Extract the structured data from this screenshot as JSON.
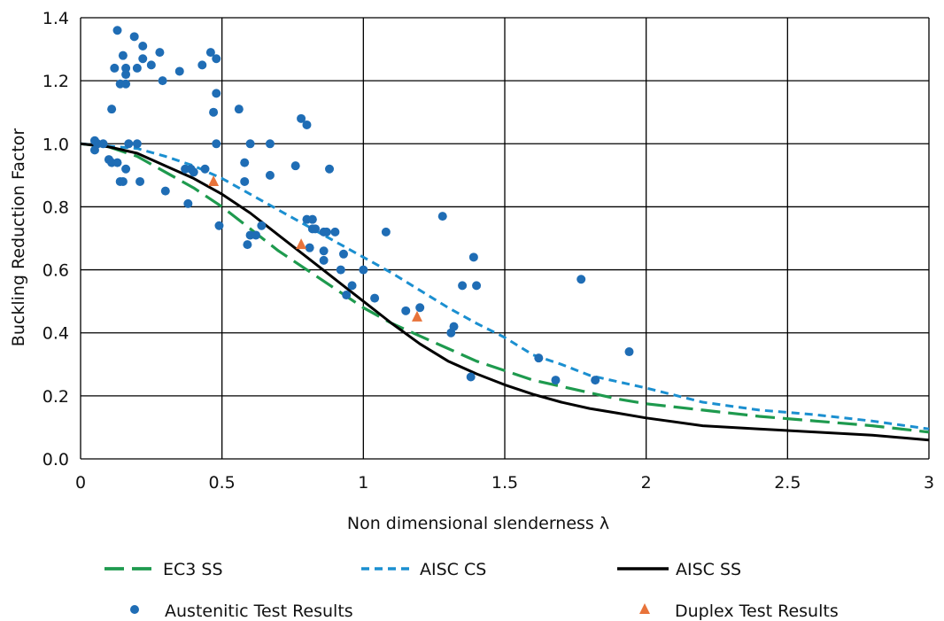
{
  "chart_data": {
    "type": "scatter",
    "xlabel": "Non dimensional slenderness λ",
    "ylabel": "Buckling Reduction Factor",
    "xlim": [
      0,
      3
    ],
    "ylim": [
      0,
      1.4
    ],
    "x_ticks": [
      "0",
      "0.5",
      "1",
      "1.5",
      "2",
      "2.5",
      "3"
    ],
    "y_ticks": [
      "0.0",
      "0.2",
      "0.4",
      "0.6",
      "0.8",
      "1.0",
      "1.2",
      "1.4"
    ],
    "grid": true,
    "legend_position": "bottom",
    "series": [
      {
        "name": "EC3 SS",
        "kind": "line",
        "color": "#1e9a4e",
        "dash": "long-dash",
        "x": [
          0,
          0.1,
          0.2,
          0.3,
          0.4,
          0.5,
          0.6,
          0.7,
          0.8,
          0.9,
          1.0,
          1.1,
          1.2,
          1.3,
          1.4,
          1.5,
          1.6,
          1.7,
          1.8,
          1.9,
          2.0,
          2.2,
          2.4,
          2.6,
          2.8,
          3.0
        ],
        "y": [
          1.0,
          0.99,
          0.96,
          0.91,
          0.86,
          0.8,
          0.73,
          0.66,
          0.6,
          0.54,
          0.48,
          0.43,
          0.39,
          0.35,
          0.31,
          0.28,
          0.25,
          0.23,
          0.21,
          0.19,
          0.175,
          0.155,
          0.135,
          0.12,
          0.105,
          0.085
        ]
      },
      {
        "name": "AISC CS",
        "kind": "line",
        "color": "#1b8fd0",
        "dash": "short-dash",
        "x": [
          0,
          0.2,
          0.3,
          0.4,
          0.5,
          0.6,
          0.7,
          0.8,
          0.9,
          1.0,
          1.1,
          1.2,
          1.3,
          1.4,
          1.5,
          1.6,
          1.7,
          1.8,
          1.9,
          2.0,
          2.2,
          2.4,
          2.6,
          2.8,
          3.0
        ],
        "y": [
          1.0,
          0.985,
          0.96,
          0.93,
          0.89,
          0.84,
          0.79,
          0.74,
          0.69,
          0.64,
          0.59,
          0.535,
          0.48,
          0.43,
          0.385,
          0.33,
          0.3,
          0.265,
          0.245,
          0.225,
          0.18,
          0.155,
          0.14,
          0.12,
          0.095
        ]
      },
      {
        "name": "AISC SS",
        "kind": "line",
        "color": "#000000",
        "dash": "solid",
        "x": [
          0,
          0.1,
          0.2,
          0.3,
          0.4,
          0.5,
          0.6,
          0.7,
          0.8,
          0.9,
          1.0,
          1.1,
          1.2,
          1.3,
          1.4,
          1.5,
          1.6,
          1.7,
          1.8,
          1.9,
          2.0,
          2.2,
          2.4,
          2.6,
          2.8,
          3.0
        ],
        "y": [
          1.0,
          0.99,
          0.97,
          0.93,
          0.89,
          0.84,
          0.78,
          0.71,
          0.64,
          0.57,
          0.5,
          0.43,
          0.365,
          0.31,
          0.27,
          0.235,
          0.205,
          0.18,
          0.16,
          0.145,
          0.13,
          0.105,
          0.095,
          0.085,
          0.075,
          0.06
        ]
      },
      {
        "name": "Austenitic Test Results",
        "kind": "points",
        "marker": "circle",
        "color": "#1f6db5",
        "x": [
          0.05,
          0.05,
          0.06,
          0.08,
          0.1,
          0.11,
          0.11,
          0.12,
          0.13,
          0.13,
          0.14,
          0.14,
          0.15,
          0.15,
          0.16,
          0.16,
          0.16,
          0.16,
          0.17,
          0.19,
          0.2,
          0.2,
          0.21,
          0.22,
          0.22,
          0.25,
          0.28,
          0.29,
          0.3,
          0.35,
          0.37,
          0.38,
          0.39,
          0.4,
          0.43,
          0.44,
          0.46,
          0.47,
          0.48,
          0.48,
          0.48,
          0.49,
          0.56,
          0.58,
          0.58,
          0.59,
          0.6,
          0.6,
          0.62,
          0.64,
          0.67,
          0.67,
          0.76,
          0.78,
          0.8,
          0.8,
          0.81,
          0.82,
          0.82,
          0.83,
          0.86,
          0.86,
          0.86,
          0.87,
          0.88,
          0.9,
          0.92,
          0.93,
          0.94,
          0.96,
          1.0,
          1.04,
          1.08,
          1.15,
          1.2,
          1.28,
          1.31,
          1.32,
          1.35,
          1.38,
          1.39,
          1.4,
          1.62,
          1.68,
          1.77,
          1.82,
          1.94
        ],
        "y": [
          1.01,
          0.98,
          1.0,
          1.0,
          0.95,
          0.94,
          1.11,
          1.24,
          0.94,
          1.36,
          1.19,
          0.88,
          1.28,
          0.88,
          1.22,
          0.92,
          1.19,
          1.24,
          1.0,
          1.34,
          1.24,
          1.0,
          0.88,
          1.31,
          1.27,
          1.25,
          1.29,
          1.2,
          0.85,
          1.23,
          0.92,
          0.81,
          0.92,
          0.91,
          1.25,
          0.92,
          1.29,
          1.1,
          1.27,
          1.16,
          1.0,
          0.74,
          1.11,
          0.88,
          0.94,
          0.68,
          1.0,
          0.71,
          0.71,
          0.74,
          1.0,
          0.9,
          0.93,
          1.08,
          1.06,
          0.76,
          0.67,
          0.73,
          0.76,
          0.73,
          0.72,
          0.66,
          0.63,
          0.72,
          0.92,
          0.72,
          0.6,
          0.65,
          0.52,
          0.55,
          0.6,
          0.51,
          0.72,
          0.47,
          0.48,
          0.77,
          0.4,
          0.42,
          0.55,
          0.26,
          0.64,
          0.55,
          0.32,
          0.25,
          0.57,
          0.25,
          0.34
        ]
      },
      {
        "name": "Duplex Test Results",
        "kind": "points",
        "marker": "triangle",
        "color": "#e8733a",
        "x": [
          0.47,
          0.78,
          1.19
        ],
        "y": [
          0.88,
          0.68,
          0.45
        ]
      }
    ]
  }
}
